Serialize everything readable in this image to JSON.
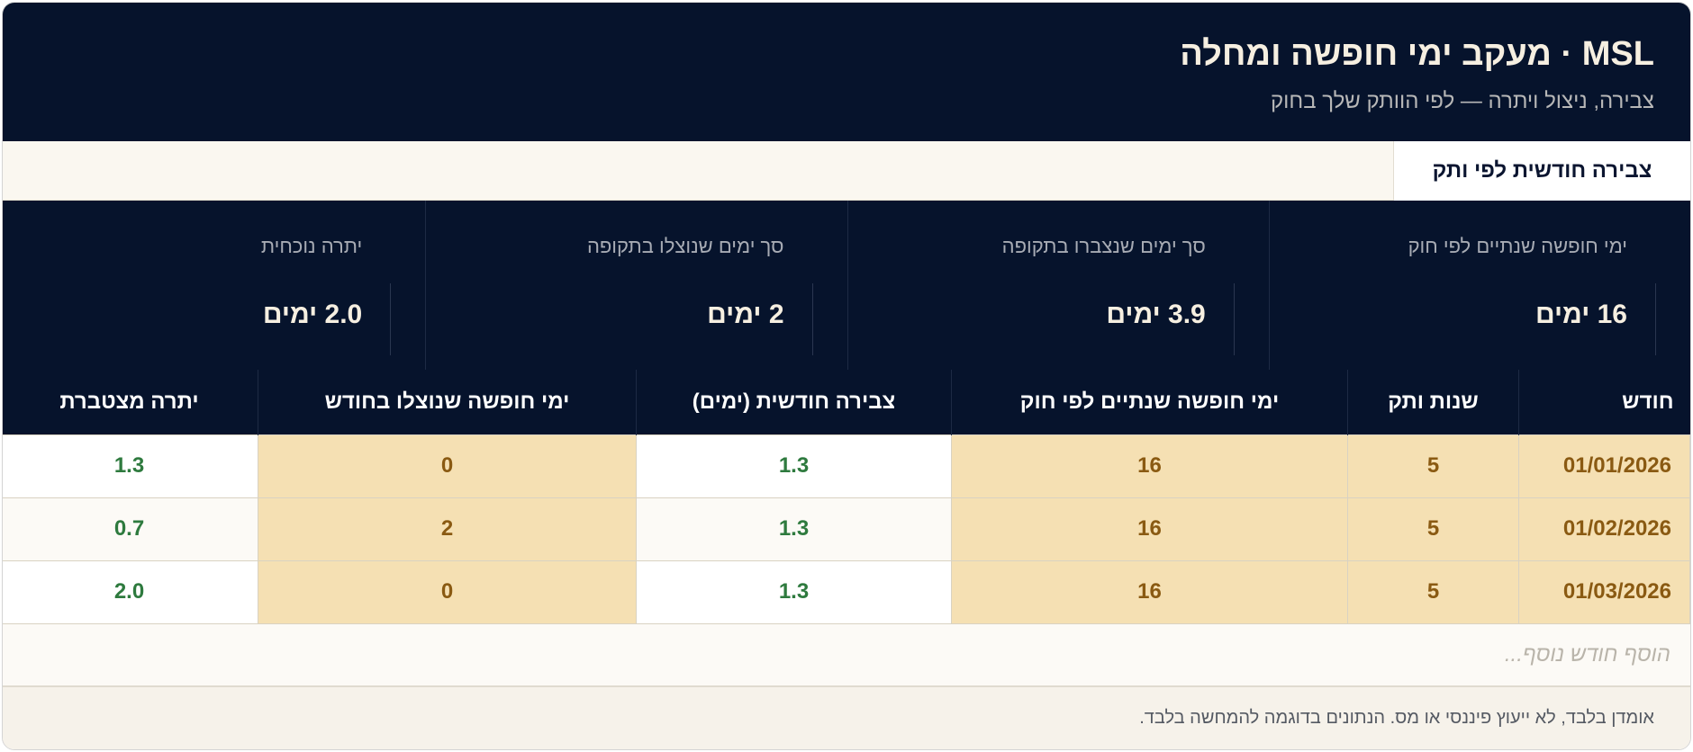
{
  "header": {
    "title": "MSL · מעקב ימי חופשה ומחלה",
    "subtitle": "צבירה, ניצול ויתרה — לפי הוותק שלך בחוק"
  },
  "tabs": [
    {
      "label": "צבירה חודשית לפי ותק"
    }
  ],
  "summary": [
    {
      "label": "ימי חופשה שנתיים לפי חוק",
      "value": "16 ימים"
    },
    {
      "label": "סך ימים שנצברו בתקופה",
      "value": "3.9 ימים"
    },
    {
      "label": "סך ימים שנוצלו בתקופה",
      "value": "2 ימים"
    },
    {
      "label": "יתרה נוכחית",
      "value": "2.0 ימים"
    }
  ],
  "table": {
    "headers": [
      "חודש",
      "שנות ותק",
      "ימי חופשה שנתיים לפי חוק",
      "צבירה חודשית (ימים)",
      "ימי חופשה שנוצלו בחודש",
      "יתרה מצטברת"
    ],
    "rows": [
      [
        "01/01/2026",
        "5",
        "16",
        "1.3",
        "0",
        "1.3"
      ],
      [
        "01/02/2026",
        "5",
        "16",
        "1.3",
        "2",
        "0.7"
      ],
      [
        "01/03/2026",
        "5",
        "16",
        "1.3",
        "0",
        "2.0"
      ]
    ],
    "add_row_placeholder": "הוסף חודש נוסף..."
  },
  "footer": {
    "disclaimer": "אומדן בלבד, לא ייעוץ פיננסי או מס. הנתונים בדוגמה להמחשה בלבד."
  }
}
